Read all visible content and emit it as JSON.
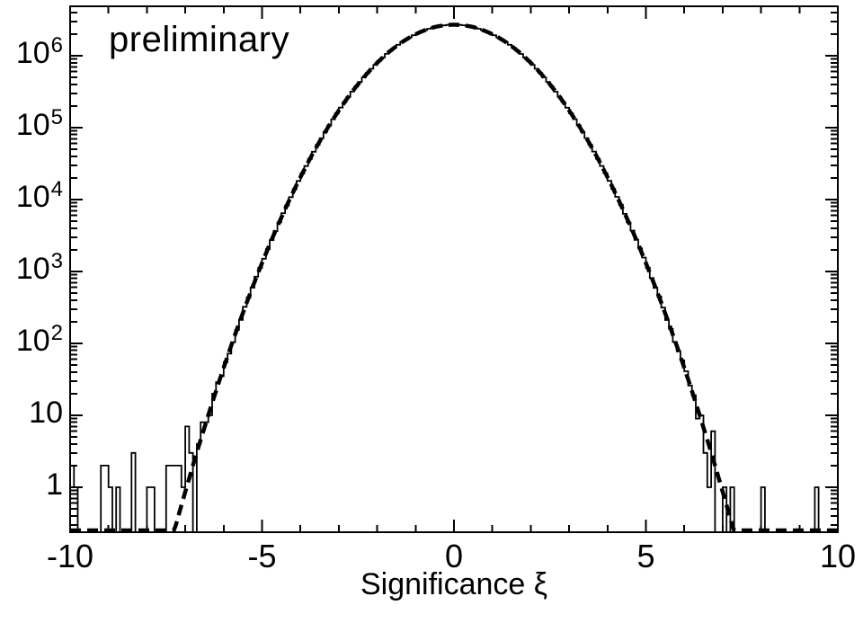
{
  "chart_data": {
    "type": "histogram",
    "title": "",
    "annotation": "preliminary",
    "xlabel": "Significance ξ",
    "ylabel": "",
    "x_range": [
      -10,
      10
    ],
    "y_scale": "log",
    "y_range": [
      0.237,
      4870000
    ],
    "grid": false,
    "legend": false,
    "x_major_ticks": [
      -10,
      -5,
      0,
      5,
      10
    ],
    "x_major_tick_labels": [
      "-10",
      "-5",
      "0",
      "5",
      "10"
    ],
    "x_minor_tick_step": 1,
    "y_major_ticks": [
      {
        "value": 1,
        "base": "1",
        "exp": ""
      },
      {
        "value": 10,
        "base": "10",
        "exp": ""
      },
      {
        "value": 100,
        "base": "10",
        "exp": "2"
      },
      {
        "value": 1000,
        "base": "10",
        "exp": "3"
      },
      {
        "value": 10000,
        "base": "10",
        "exp": "4"
      },
      {
        "value": 100000,
        "base": "10",
        "exp": "5"
      },
      {
        "value": 1000000,
        "base": "10",
        "exp": "6"
      }
    ],
    "bin_width": 0.1,
    "histogram": {
      "style": "step-outline",
      "core_range": [
        -6.79,
        6.44
      ],
      "tail_bins_left": [
        [
          -10.0,
          2
        ],
        [
          -9.9,
          1
        ],
        [
          -9.2,
          2
        ],
        [
          -9.1,
          2
        ],
        [
          -9.0,
          1
        ],
        [
          -8.8,
          1
        ],
        [
          -8.4,
          3
        ],
        [
          -8.0,
          1
        ],
        [
          -7.9,
          1
        ],
        [
          -7.5,
          2
        ],
        [
          -7.4,
          2
        ],
        [
          -7.3,
          2
        ],
        [
          -7.2,
          2
        ],
        [
          -7.1,
          1
        ],
        [
          -7.0,
          7
        ],
        [
          -6.9,
          3
        ]
      ],
      "tail_bins_right": [
        [
          6.5,
          3
        ],
        [
          6.6,
          1
        ],
        [
          6.7,
          6
        ],
        [
          7.0,
          1
        ],
        [
          7.2,
          1
        ],
        [
          8.0,
          1
        ],
        [
          9.4,
          1
        ]
      ]
    },
    "fit_curve": {
      "type": "gaussian",
      "amplitude": 2700000,
      "mean": 0,
      "sigma": 1.28,
      "line_style": "dashed"
    },
    "colors": {
      "foreground": "#000000",
      "background": "#ffffff"
    }
  }
}
